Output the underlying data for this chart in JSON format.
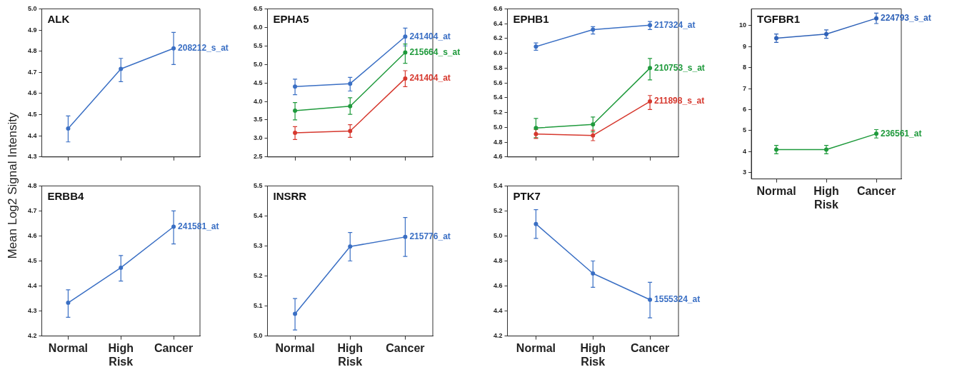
{
  "chart_data": [
    {
      "type": "line",
      "title": "ALK",
      "ylabel": "Mean Log2 Signal Intensity",
      "categories": [
        null,
        null,
        null
      ],
      "ylim": [
        4.3,
        5.0
      ],
      "yticks": [
        4.3,
        4.4,
        4.5,
        4.6,
        4.7,
        4.8,
        4.9,
        {
          "value": 5.0,
          "label": "5.0"
        }
      ],
      "marker": "circle",
      "series": [
        {
          "name": "208212_s_at",
          "color": "#3a6fc4",
          "values": [
            4.434,
            4.716,
            4.813
          ],
          "errors": [
            [
              4.371,
              4.494
            ],
            [
              4.656,
              4.766
            ],
            [
              4.737,
              4.889
            ]
          ]
        }
      ]
    },
    {
      "type": "line",
      "title": "EPHA5",
      "categories": [
        null,
        null,
        null
      ],
      "ylim": [
        2.5,
        6.5
      ],
      "yticks": [
        2.5,
        {
          "value": 3.0,
          "label": "3.0"
        },
        3.5,
        {
          "value": 4.0,
          "label": "4.0"
        },
        4.5,
        {
          "value": 5.0,
          "label": "5.0"
        },
        5.5,
        {
          "value": 6.0,
          "label": "6.0"
        },
        6.5
      ],
      "marker": "circle",
      "series": [
        {
          "name": "241404_at",
          "color": "#3a6fc4",
          "values": [
            4.4,
            4.48,
            5.75
          ],
          "errors": [
            [
              4.18,
              4.6
            ],
            [
              4.28,
              4.65
            ],
            [
              5.5,
              5.98
            ]
          ]
        },
        {
          "name": "215664_s_at",
          "color": "#1f9a3c",
          "values": [
            3.75,
            3.87,
            5.32
          ],
          "errors": [
            [
              3.5,
              3.97
            ],
            [
              3.65,
              4.1
            ],
            [
              5.03,
              5.55
            ]
          ]
        },
        {
          "name": "241404_at",
          "color": "#d6382e",
          "values": [
            3.15,
            3.2,
            4.62
          ],
          "errors": [
            [
              2.97,
              3.32
            ],
            [
              3.03,
              3.37
            ],
            [
              4.4,
              4.83
            ]
          ]
        }
      ]
    },
    {
      "type": "line",
      "title": "EPHB1",
      "categories": [
        null,
        null,
        null
      ],
      "ylim": [
        4.6,
        6.6
      ],
      "yticks": [
        4.6,
        4.8,
        {
          "value": 5.0,
          "label": "5.0"
        },
        5.2,
        5.4,
        5.6,
        5.8,
        {
          "value": 6.0,
          "label": "6.0"
        },
        6.2,
        6.4,
        6.6
      ],
      "marker": "circle",
      "series": [
        {
          "name": "217324_at",
          "color": "#3a6fc4",
          "values": [
            6.09,
            6.32,
            6.38
          ],
          "errors": [
            [
              6.04,
              6.14
            ],
            [
              6.26,
              6.36
            ],
            [
              6.32,
              6.43
            ]
          ]
        },
        {
          "name": "210753_s_at",
          "color": "#1f9a3c",
          "values": [
            4.99,
            5.04,
            5.8
          ],
          "errors": [
            [
              4.86,
              5.12
            ],
            [
              4.94,
              5.14
            ],
            [
              5.64,
              5.93
            ]
          ]
        },
        {
          "name": "211898_s_at",
          "color": "#d6382e",
          "values": [
            4.91,
            4.89,
            5.35
          ],
          "errors": [
            [
              4.85,
              4.97
            ],
            [
              4.82,
              4.96
            ],
            [
              5.24,
              5.43
            ]
          ]
        }
      ]
    },
    {
      "type": "line",
      "title": "TGFBR1",
      "categories": [
        "Normal",
        "High Risk",
        "Cancer"
      ],
      "ylim": [
        2.7,
        10.8
      ],
      "yticks": [
        3,
        4,
        5,
        6,
        7,
        8,
        9,
        10
      ],
      "marker": "circle",
      "series": [
        {
          "name": "224793_s_at",
          "color": "#2f62b8",
          "values": [
            9.4,
            9.6,
            10.35
          ],
          "errors": [
            [
              9.2,
              9.6
            ],
            [
              9.4,
              9.8
            ],
            [
              10.1,
              10.6
            ]
          ]
        },
        {
          "name": "236561_at",
          "color": "#1f9a3c",
          "values": [
            4.1,
            4.1,
            4.85
          ],
          "errors": [
            [
              3.9,
              4.3
            ],
            [
              3.9,
              4.3
            ],
            [
              4.65,
              5.05
            ]
          ]
        }
      ]
    },
    {
      "type": "line",
      "title": "ERBB4",
      "categories": [
        "Normal",
        "High Risk",
        "Cancer"
      ],
      "ylim": [
        4.2,
        4.8
      ],
      "yticks": [
        4.2,
        4.3,
        4.4,
        4.5,
        4.6,
        4.7,
        4.8
      ],
      "marker": "circle",
      "series": [
        {
          "name": "241581_at",
          "color": "#3a6fc4",
          "values": [
            4.333,
            4.473,
            4.637
          ],
          "errors": [
            [
              4.275,
              4.385
            ],
            [
              4.42,
              4.522
            ],
            [
              4.568,
              4.7
            ]
          ]
        }
      ]
    },
    {
      "type": "line",
      "title": "INSRR",
      "categories": [
        "Normal",
        "High Risk",
        "Cancer"
      ],
      "ylim": [
        5.0,
        5.5
      ],
      "yticks": [
        {
          "value": 5.0,
          "label": "5.0"
        },
        5.1,
        5.2,
        5.3,
        5.4,
        5.5
      ],
      "marker": "circle",
      "series": [
        {
          "name": "215776_at",
          "color": "#3a6fc4",
          "values": [
            5.074,
            5.298,
            5.33
          ],
          "errors": [
            [
              5.02,
              5.125
            ],
            [
              5.25,
              5.345
            ],
            [
              5.265,
              5.395
            ]
          ]
        }
      ]
    },
    {
      "type": "line",
      "title": "PTK7",
      "categories": [
        "Normal",
        "High Risk",
        "Cancer"
      ],
      "ylim": [
        4.2,
        5.4
      ],
      "yticks": [
        4.2,
        4.4,
        4.6,
        4.8,
        {
          "value": 5.0,
          "label": "5.0"
        },
        5.2,
        5.4
      ],
      "marker": "circle",
      "series": [
        {
          "name": "1555324_at",
          "color": "#3a6fc4",
          "values": [
            5.096,
            4.7,
            4.49
          ],
          "errors": [
            [
              4.98,
              5.21
            ],
            [
              4.59,
              4.8
            ],
            [
              4.345,
              4.63
            ]
          ]
        }
      ]
    }
  ]
}
